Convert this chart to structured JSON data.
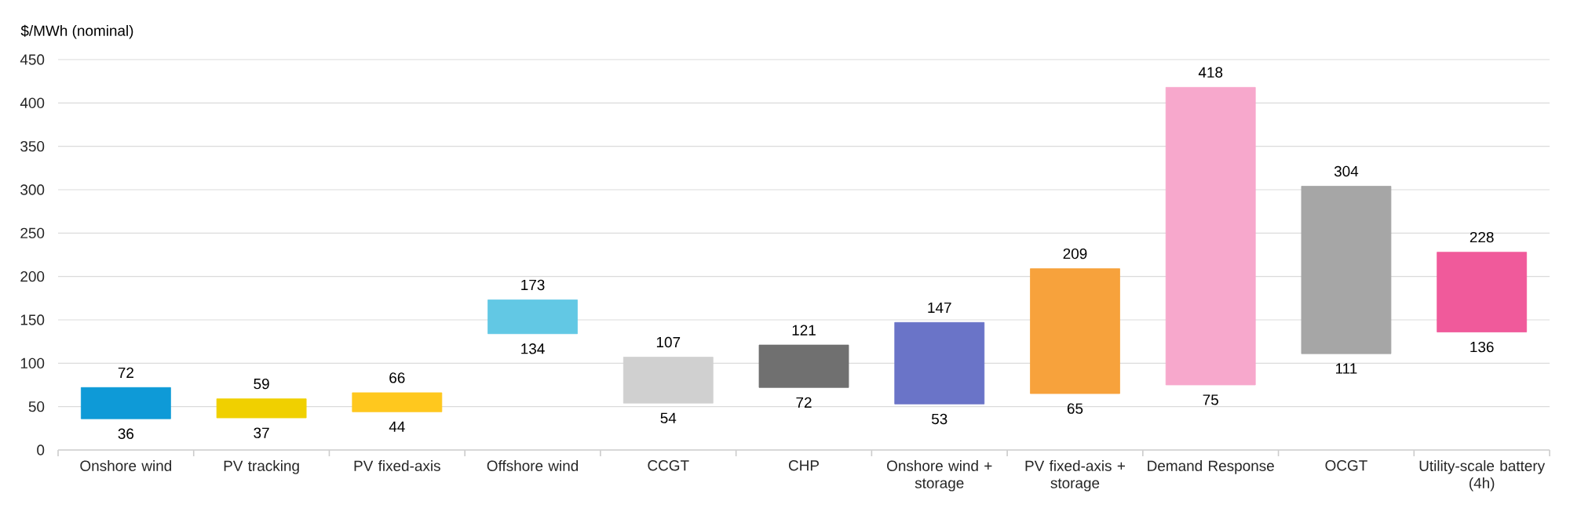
{
  "chart_data": {
    "type": "bar",
    "ylabel": "$/MWh (nominal)",
    "categories": [
      "Onshore wind",
      "PV tracking",
      "PV fixed-axis",
      "Offshore wind",
      "CCGT",
      "CHP",
      "Onshore wind + storage",
      "PV fixed-axis + storage",
      "Demand Response",
      "OCGT",
      "Utility-scale battery (4h)"
    ],
    "base": [
      36,
      37,
      44,
      134,
      54,
      72,
      53,
      65,
      75,
      111,
      136
    ],
    "values": [
      36,
      22,
      22,
      39,
      53,
      49,
      94,
      144,
      343,
      193,
      92
    ],
    "colors": [
      "#0e9ad7",
      "#f0d000",
      "#ffc81e",
      "#62c8e4",
      "#d0d0d0",
      "#707070",
      "#6a74c8",
      "#f7a23c",
      "#f7a8cc",
      "#a6a6a6",
      "#f05a9b"
    ],
    "ylim": [
      0,
      450
    ],
    "yticks": [
      0,
      50,
      100,
      150,
      200,
      250,
      300,
      350,
      400,
      450
    ],
    "grid": "y",
    "annotations": [
      {
        "text": "72",
        "x": "Onshore wind",
        "y": 72
      },
      {
        "text": "36",
        "x": "Onshore wind",
        "y": 36
      },
      {
        "text": "59",
        "x": "PV tracking",
        "y": 59
      },
      {
        "text": "37",
        "x": "PV tracking",
        "y": 37
      },
      {
        "text": "66",
        "x": "PV fixed-axis",
        "y": 66
      },
      {
        "text": "44",
        "x": "PV fixed-axis",
        "y": 44
      },
      {
        "text": "173",
        "x": "Offshore wind",
        "y": 173
      },
      {
        "text": "134",
        "x": "Offshore wind",
        "y": 134
      },
      {
        "text": "107",
        "x": "CCGT",
        "y": 107
      },
      {
        "text": "54",
        "x": "CCGT",
        "y": 54
      },
      {
        "text": "121",
        "x": "CHP",
        "y": 121
      },
      {
        "text": "72",
        "x": "CHP",
        "y": 72
      },
      {
        "text": "147",
        "x": "Onshore wind + storage",
        "y": 147
      },
      {
        "text": "53",
        "x": "Onshore wind + storage",
        "y": 53
      },
      {
        "text": "209",
        "x": "PV fixed-axis + storage",
        "y": 209
      },
      {
        "text": "65",
        "x": "PV fixed-axis + storage",
        "y": 65
      },
      {
        "text": "418",
        "x": "Demand Response",
        "y": 418
      },
      {
        "text": "75",
        "x": "Demand Response",
        "y": 75
      },
      {
        "text": "304",
        "x": "OCGT",
        "y": 304
      },
      {
        "text": "111",
        "x": "OCGT",
        "y": 111
      },
      {
        "text": "228",
        "x": "Utility-scale battery (4h)",
        "y": 228
      },
      {
        "text": "136",
        "x": "Utility-scale battery (4h)",
        "y": 136
      }
    ]
  }
}
